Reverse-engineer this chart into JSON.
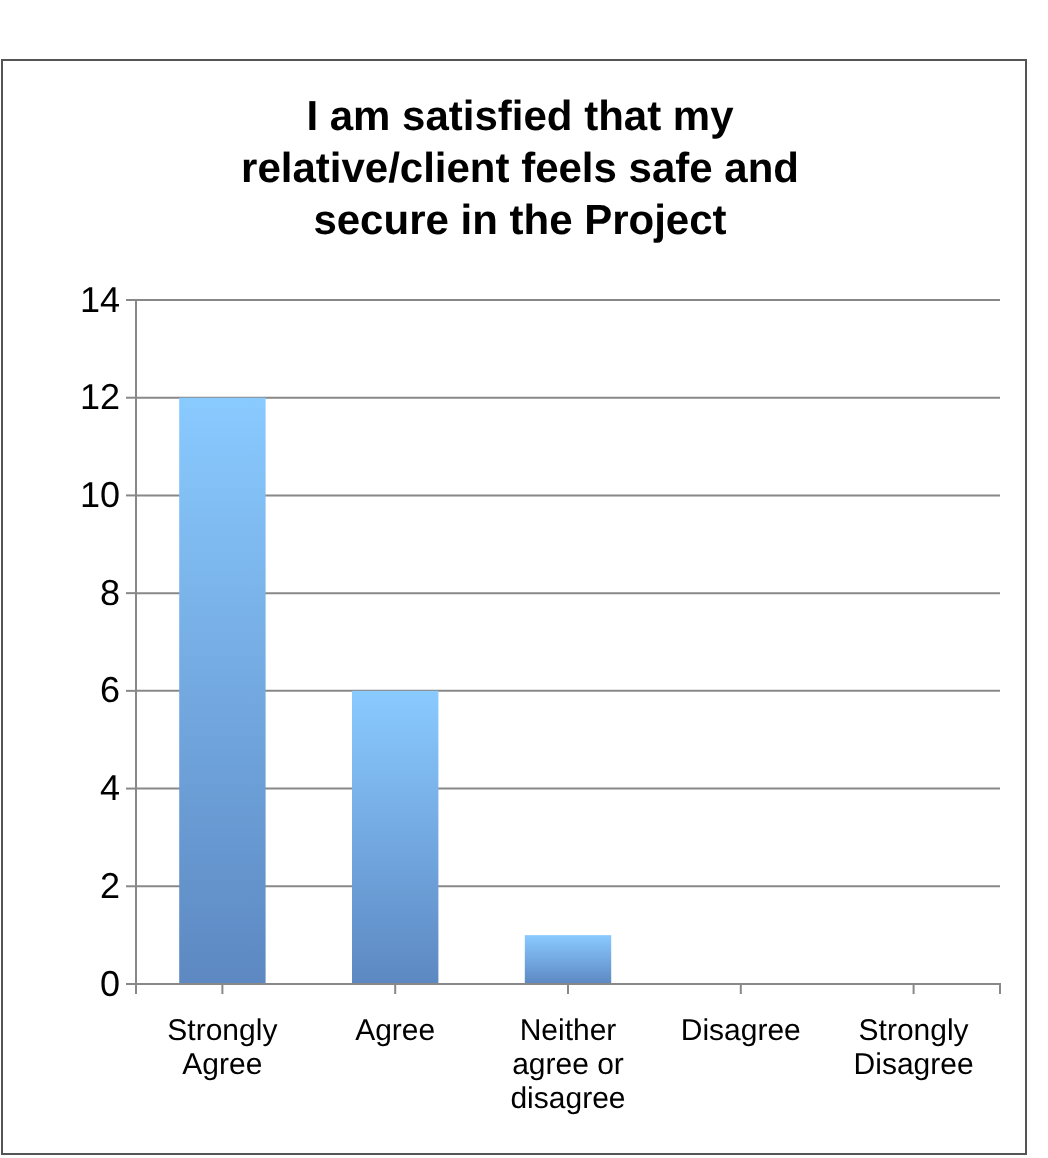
{
  "chart_data": {
    "type": "bar",
    "title": "I am satisfied that my relative/client feels safe and secure in the Project",
    "categories": [
      "Strongly Agree",
      "Agree",
      "Neither agree or disagree",
      "Disagree",
      "Strongly Disagree"
    ],
    "values": [
      12,
      6,
      1,
      0,
      0
    ],
    "color": "#6fa3e8",
    "ylim": [
      0,
      14
    ],
    "yticks": [
      0,
      2,
      4,
      6,
      8,
      10,
      12,
      14
    ],
    "grid": "y"
  }
}
